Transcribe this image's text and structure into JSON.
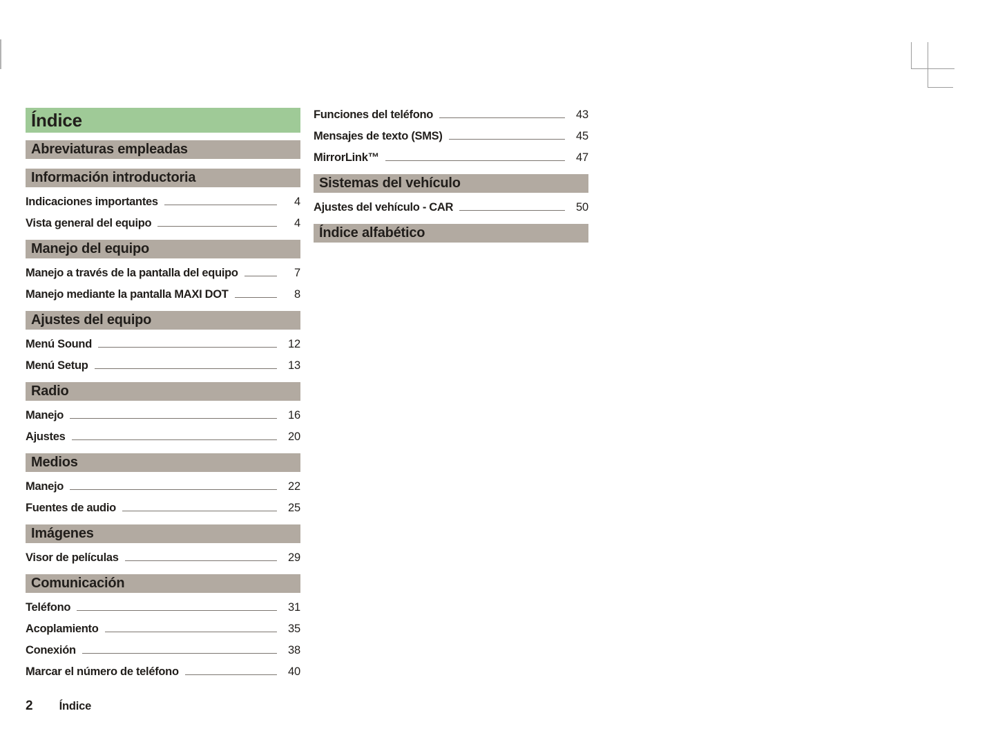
{
  "toc": {
    "title": "Índice",
    "left": [
      {
        "type": "section",
        "label": "Abreviaturas empleadas"
      },
      {
        "type": "section",
        "label": "Información introductoria"
      },
      {
        "type": "entry",
        "label": "Indicaciones importantes",
        "page": "4"
      },
      {
        "type": "entry",
        "label": "Vista general del equipo",
        "page": "4"
      },
      {
        "type": "section",
        "label": "Manejo del equipo"
      },
      {
        "type": "entry",
        "label": "Manejo a través de la pantalla del equipo",
        "page": "7"
      },
      {
        "type": "entry",
        "label": "Manejo mediante la pantalla MAXI DOT",
        "page": "8"
      },
      {
        "type": "section",
        "label": "Ajustes del equipo"
      },
      {
        "type": "entry",
        "label": "Menú Sound",
        "page": "12"
      },
      {
        "type": "entry",
        "label": "Menú Setup",
        "page": "13"
      },
      {
        "type": "section",
        "label": "Radio"
      },
      {
        "type": "entry",
        "label": "Manejo",
        "page": "16"
      },
      {
        "type": "entry",
        "label": "Ajustes",
        "page": "20"
      },
      {
        "type": "section",
        "label": "Medios"
      },
      {
        "type": "entry",
        "label": "Manejo",
        "page": "22"
      },
      {
        "type": "entry",
        "label": "Fuentes de audio",
        "page": "25"
      },
      {
        "type": "section",
        "label": "Imágenes"
      },
      {
        "type": "entry",
        "label": "Visor de películas",
        "page": "29"
      },
      {
        "type": "section",
        "label": "Comunicación"
      },
      {
        "type": "entry",
        "label": "Teléfono",
        "page": "31"
      },
      {
        "type": "entry",
        "label": "Acoplamiento",
        "page": "35"
      },
      {
        "type": "entry",
        "label": "Conexión",
        "page": "38"
      },
      {
        "type": "entry",
        "label": "Marcar el número de teléfono",
        "page": "40"
      }
    ],
    "right": [
      {
        "type": "entry",
        "label": "Funciones del teléfono",
        "page": "43"
      },
      {
        "type": "entry",
        "label": "Mensajes de texto (SMS)",
        "page": "45"
      },
      {
        "type": "entry",
        "label": "MirrorLink™",
        "page": "47"
      },
      {
        "type": "section",
        "label": "Sistemas del vehículo"
      },
      {
        "type": "entry",
        "label": "Ajustes del vehículo - CAR",
        "page": "50"
      },
      {
        "type": "section",
        "label": "Índice alfabético"
      }
    ]
  },
  "footer": {
    "page_number": "2",
    "label": "Índice"
  },
  "colors": {
    "title_bg": "#9fca97",
    "section_bg": "#b2aaa1",
    "text": "#211e1b",
    "leader_line": "#7b756f",
    "crop_mark": "#9b9b9b"
  }
}
